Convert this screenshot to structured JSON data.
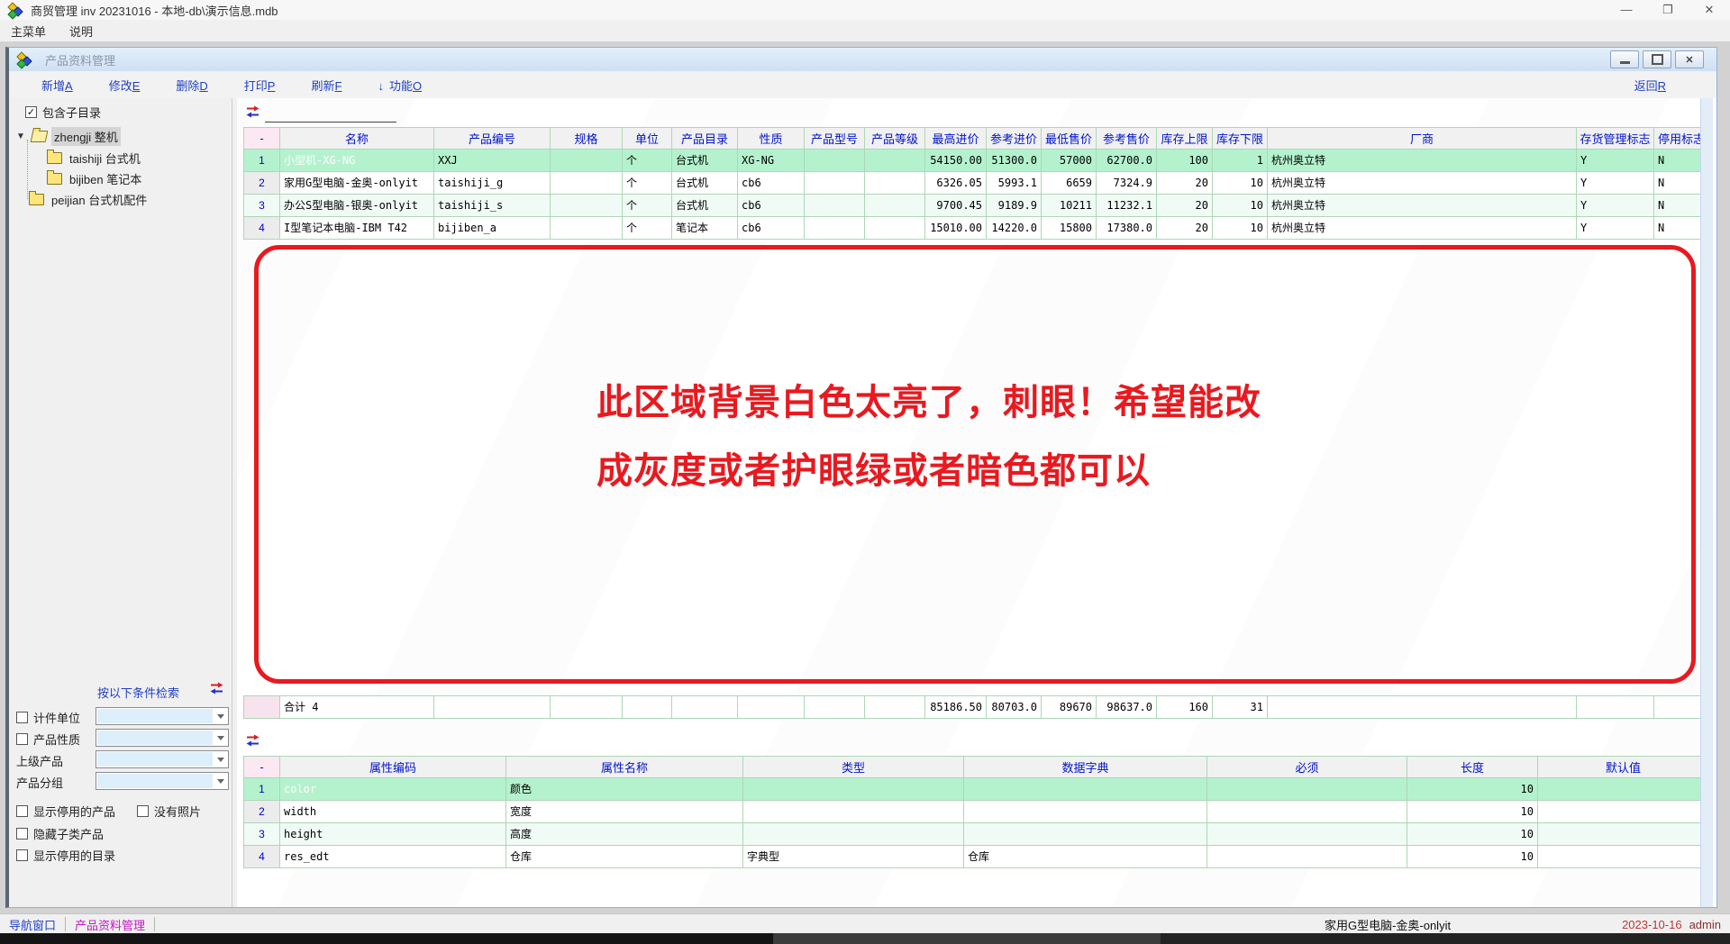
{
  "window": {
    "title": "商贸管理 inv 20231016 - 本地-db\\演示信息.mdb"
  },
  "menu": {
    "items": [
      "主菜单",
      "说明"
    ]
  },
  "child": {
    "title": "产品资料管理"
  },
  "toolbar": {
    "buttons": [
      {
        "text": "新增",
        "key": "A"
      },
      {
        "text": "修改",
        "key": "E"
      },
      {
        "text": "删除",
        "key": "D"
      },
      {
        "text": "打印",
        "key": "P"
      },
      {
        "text": "刷新",
        "key": "F"
      },
      {
        "text": "功能",
        "key": "O"
      }
    ],
    "return": {
      "text": "返回",
      "key": "R"
    }
  },
  "sidebar": {
    "include_subdirs": "包含子目录",
    "tree": [
      {
        "label": "zhengji 整机"
      },
      {
        "label": "taishiji 台式机"
      },
      {
        "label": "bijiben 笔记本"
      },
      {
        "label": "peijian 台式机配件"
      }
    ]
  },
  "filter_panel": {
    "title": "按以下条件检索",
    "fields": [
      {
        "label": "计件单位",
        "has_checkbox": true
      },
      {
        "label": "产品性质",
        "has_checkbox": true
      },
      {
        "label": "上级产品",
        "has_checkbox": false
      },
      {
        "label": "产品分组",
        "has_checkbox": false
      }
    ],
    "checkboxes": [
      "显示停用的产品",
      "没有照片",
      "隐藏子类产品",
      "显示停用的目录"
    ]
  },
  "main_table": {
    "headers": [
      "-",
      "名称",
      "产品编号",
      "规格",
      "单位",
      "产品目录",
      "性质",
      "产品型号",
      "产品等级",
      "最高进价",
      "参考进价",
      "最低售价",
      "参考售价",
      "库存上限",
      "库存下限",
      "厂商",
      "存货管理标志",
      "停用标志"
    ],
    "rows": [
      [
        "1",
        "小型机-XG-NG",
        "XXJ",
        "",
        "个",
        "台式机",
        "XG-NG",
        "",
        "",
        "54150.00",
        "51300.0",
        "57000",
        "62700.0",
        "100",
        "1",
        "杭州奥立特",
        "Y",
        "N"
      ],
      [
        "2",
        "家用G型电脑-金奥-onlyit",
        "taishiji_g",
        "",
        "个",
        "台式机",
        "cb6",
        "",
        "",
        "6326.05",
        "5993.1",
        "6659",
        "7324.9",
        "20",
        "10",
        "杭州奥立特",
        "Y",
        "N"
      ],
      [
        "3",
        "办公S型电脑-银奥-onlyit",
        "taishiji_s",
        "",
        "个",
        "台式机",
        "cb6",
        "",
        "",
        "9700.45",
        "9189.9",
        "10211",
        "11232.1",
        "20",
        "10",
        "杭州奥立特",
        "Y",
        "N"
      ],
      [
        "4",
        "I型笔记本电脑-IBM T42",
        "bijiben_a",
        "",
        "个",
        "笔记本",
        "cb6",
        "",
        "",
        "15010.00",
        "14220.0",
        "15800",
        "17380.0",
        "20",
        "10",
        "杭州奥立特",
        "Y",
        "N"
      ]
    ],
    "total": [
      "",
      "合计 4",
      "",
      "",
      "",
      "",
      "",
      "",
      "",
      "85186.50",
      "80703.0",
      "89670",
      "98637.0",
      "160",
      "31",
      "",
      "",
      ""
    ]
  },
  "attr_table": {
    "headers": [
      "-",
      "属性编码",
      "属性名称",
      "类型",
      "数据字典",
      "必须",
      "长度",
      "默认值"
    ],
    "rows": [
      [
        "1",
        "color",
        "颜色",
        "",
        "",
        "",
        "10",
        ""
      ],
      [
        "2",
        "width",
        "宽度",
        "",
        "",
        "",
        "10",
        ""
      ],
      [
        "3",
        "height",
        "高度",
        "",
        "",
        "",
        "10",
        ""
      ],
      [
        "4",
        "res_edt",
        "仓库",
        "字典型",
        "仓库",
        "",
        "10",
        ""
      ]
    ]
  },
  "annotation": {
    "line1": "此区域背景白色太亮了，刺眼！希望能改",
    "line2": "成灰度或者护眼绿或者暗色都可以"
  },
  "statusbar": {
    "nav": "导航窗口",
    "tab": "产品资料管理",
    "product": "家用G型电脑-金奥-onlyit",
    "date": "2023-10-16",
    "user": "admin"
  },
  "colors": {
    "selected_cell": "#4457ce",
    "selected_row": "#b4f2ce",
    "alt_row": "#f0fbf6",
    "grid_line": "#aed6b6",
    "header_text": "#0013cc",
    "annotation_red": "#e8191f",
    "link_blue": "#1f3fc3",
    "tab_magenta": "#c816c8"
  }
}
